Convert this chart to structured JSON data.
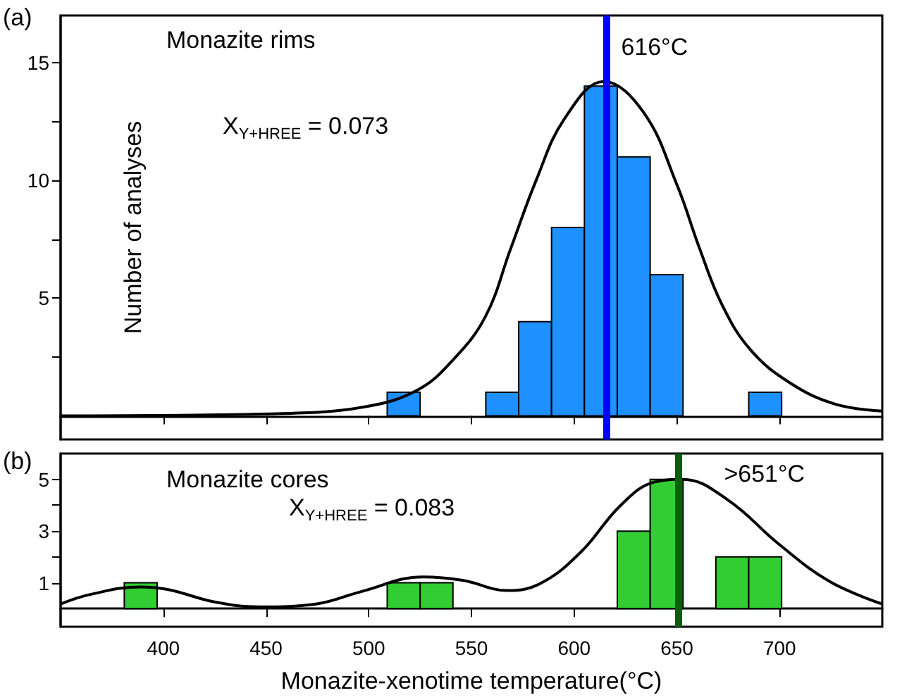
{
  "chart_data": [
    {
      "type": "histogram",
      "ylabel": "Number of analyses",
      "annotations": [
        "(a)",
        "Monazite rims",
        "X$_{Y+HREE}$ = 0.073"
      ],
      "xlim": [
        350,
        750
      ],
      "xticks": [
        {
          "value": 400,
          "label": null
        },
        {
          "value": 450,
          "label": null
        },
        {
          "value": 500,
          "label": null
        },
        {
          "value": 550,
          "label": null
        },
        {
          "value": 600,
          "label": null
        },
        {
          "value": 650,
          "label": null
        },
        {
          "value": 700,
          "label": null
        }
      ],
      "ylim": [
        -1,
        17
      ],
      "yticks": [
        {
          "value": 2.5,
          "label": null
        },
        5,
        {
          "value": 7.5,
          "label": null
        },
        10,
        {
          "value": 12.5,
          "label": null
        },
        15
      ],
      "tick_labels": "y",
      "grid": false,
      "series": [
        {
          "color": "#1e90ff",
          "bins": [
            509,
            525,
            541,
            557,
            573,
            589,
            605,
            621,
            637,
            653,
            669,
            685,
            701
          ],
          "values": [
            1,
            0,
            0,
            1,
            4,
            8,
            14,
            11,
            6,
            0,
            0,
            1
          ]
        },
        {
          "type": "line",
          "color": "#000000",
          "x": [
            350,
            457.8,
            499,
            523.8,
            540.2,
            556.7,
            569.1,
            581.5,
            595.2,
            614.4,
            633.7,
            650.1,
            661.1,
            672.1,
            685.9,
            705.1,
            727.1,
            750
          ],
          "values": [
            0,
            0.1,
            0.4,
            1.1,
            2.3,
            4.2,
            7.1,
            10,
            12.6,
            14.2,
            12.9,
            9.8,
            7.1,
            4.7,
            2.8,
            1.4,
            0.5,
            0.2
          ]
        }
      ],
      "ref_lines": [
        {
          "axis": "x",
          "value": 616,
          "label": "616°C",
          "color": "#0000ff"
        }
      ]
    },
    {
      "type": "histogram",
      "xlabel": "Monazite-xenotime temperature(°C)",
      "annotations": [
        "(b)",
        "Monazite cores",
        "X$_{Y+HREE}$ = 0.083"
      ],
      "xlim": [
        350,
        750
      ],
      "xticks": [
        400,
        450,
        500,
        550,
        600,
        650,
        700
      ],
      "ylim": [
        -0.7,
        6
      ],
      "yticks": [
        1,
        {
          "value": 2,
          "label": null
        },
        3,
        {
          "value": 4,
          "label": null
        },
        5
      ],
      "grid": false,
      "series": [
        {
          "color": "#32cd32",
          "bins": [
            381,
            397,
            413,
            429,
            445,
            461,
            477,
            493,
            509,
            525,
            541,
            557,
            573,
            589,
            605,
            621,
            637,
            653,
            669,
            685,
            701
          ],
          "values": [
            1,
            0,
            0,
            0,
            0,
            0,
            0,
            0,
            1,
            1,
            0,
            0,
            0,
            0,
            0,
            3,
            5,
            0,
            2,
            2
          ]
        },
        {
          "type": "line",
          "color": "#000000",
          "x": [
            350,
            364.4,
            389,
            402.9,
            424.9,
            446.8,
            474.3,
            496.3,
            526.5,
            545.7,
            567.7,
            584.2,
            603.4,
            622.7,
            639.2,
            652.9,
            674.9,
            699.6,
            724.4,
            750
          ],
          "values": [
            0.18,
            0.55,
            0.84,
            0.73,
            0.26,
            0.07,
            0.18,
            0.66,
            1.23,
            1.1,
            0.7,
            1.0,
            2.2,
            4.0,
            4.9,
            5.0,
            4.2,
            2.5,
            1.05,
            0.18
          ]
        }
      ],
      "ref_lines": [
        {
          "axis": "x",
          "value": 651,
          "label": ">651°C",
          "color": "#0b5e0b"
        }
      ]
    }
  ]
}
